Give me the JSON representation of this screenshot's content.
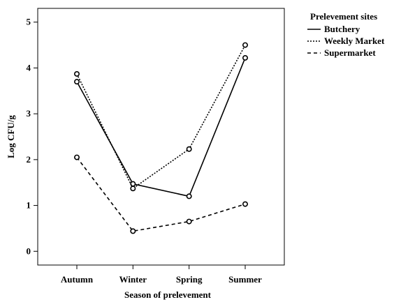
{
  "chart_data": {
    "type": "line",
    "title": "",
    "xlabel": "Season of prelevement",
    "ylabel": "Log CFU/g",
    "categories": [
      "Autumn",
      "Winter",
      "Spring",
      "Summer"
    ],
    "ylim": [
      -0.3,
      5.3
    ],
    "yticks": [
      0,
      1,
      2,
      3,
      4,
      5
    ],
    "grid": false,
    "legend": {
      "title": "Prelevement sites",
      "placement": "top-right, outside plot"
    },
    "series": [
      {
        "name": "Butchery",
        "line_style": "solid",
        "values": [
          3.7,
          1.47,
          1.2,
          4.22
        ]
      },
      {
        "name": "Weekly Market",
        "line_style": "dotted",
        "values": [
          3.87,
          1.37,
          2.23,
          4.5
        ]
      },
      {
        "name": "Supermarket",
        "line_style": "dashed",
        "values": [
          2.05,
          0.44,
          0.65,
          1.03
        ]
      }
    ]
  }
}
